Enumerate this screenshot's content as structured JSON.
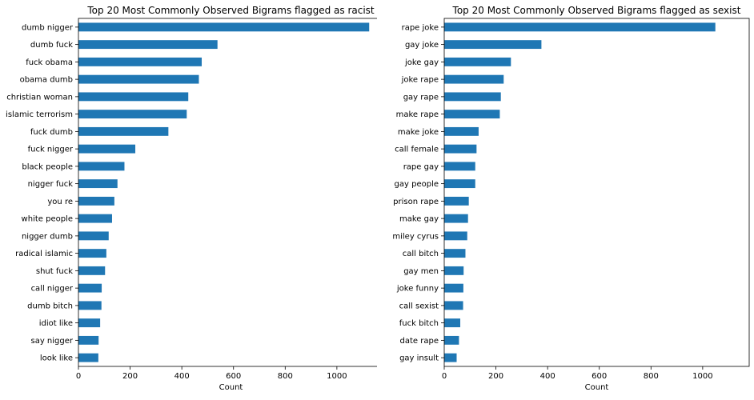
{
  "chart_data": [
    {
      "type": "bar",
      "orientation": "horizontal",
      "title": "Top 20 Most Commonly Observed Bigrams flagged as racist",
      "xlabel": "Count",
      "ylabel": "",
      "xlim": [
        0,
        1180
      ],
      "xticks": [
        0,
        200,
        400,
        600,
        800,
        1000
      ],
      "bar_color": "#1f77b4",
      "grid": false,
      "categories": [
        "dumb nigger",
        "dumb fuck",
        "fuck obama",
        "obama dumb",
        "christian woman",
        "islamic terrorism",
        "fuck dumb",
        "fuck nigger",
        "black people",
        "nigger fuck",
        "you re",
        "white people",
        "nigger dumb",
        "radical islamic",
        "shut fuck",
        "call nigger",
        "dumb bitch",
        "idiot like",
        "say nigger",
        "look like"
      ],
      "values": [
        1125,
        538,
        477,
        466,
        425,
        419,
        348,
        220,
        178,
        151,
        139,
        130,
        117,
        108,
        103,
        90,
        89,
        84,
        78,
        77
      ]
    },
    {
      "type": "bar",
      "orientation": "horizontal",
      "title": "Top 20 Most Commonly Observed Bigrams flagged as sexist",
      "xlabel": "Count",
      "ylabel": "",
      "xlim": [
        0,
        1180
      ],
      "xticks": [
        0,
        200,
        400,
        600,
        800,
        1000
      ],
      "bar_color": "#1f77b4",
      "grid": false,
      "categories": [
        "rape joke",
        "gay joke",
        "joke gay",
        "joke rape",
        "gay rape",
        "make rape",
        "make joke",
        "call female",
        "rape gay",
        "gay people",
        "prison rape",
        "make gay",
        "miley cyrus",
        "call bitch",
        "gay men",
        "joke funny",
        "call sexist",
        "fuck bitch",
        "date rape",
        "gay insult"
      ],
      "values": [
        1049,
        376,
        258,
        230,
        219,
        215,
        133,
        125,
        120,
        120,
        95,
        92,
        89,
        82,
        75,
        74,
        73,
        62,
        57,
        48
      ]
    }
  ]
}
